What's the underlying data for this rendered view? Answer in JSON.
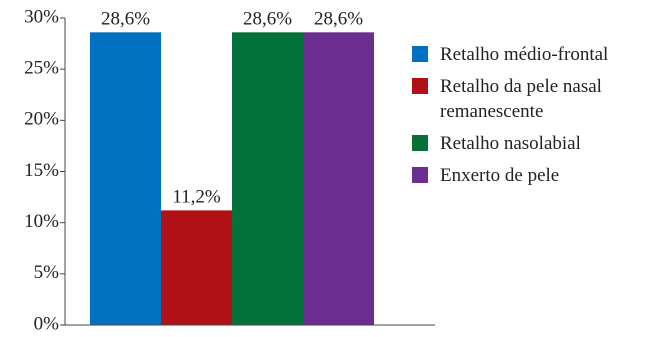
{
  "chart_data": {
    "type": "bar",
    "categories": [
      null
    ],
    "series": [
      {
        "name": "Retalho médio-frontal",
        "color": "#0070c0",
        "values": [
          28.6
        ],
        "value_labels": [
          "28,6%"
        ]
      },
      {
        "name": "Retalho da pele nasal remanescente",
        "color": "#b01116",
        "values": [
          11.2
        ],
        "value_labels": [
          "11,2%"
        ]
      },
      {
        "name": "Retalho nasolabial",
        "color": "#04703a",
        "values": [
          28.6
        ],
        "value_labels": [
          "28,6%"
        ]
      },
      {
        "name": "Enxerto de pele",
        "color": "#6c2d91",
        "values": [
          28.6
        ],
        "value_labels": [
          "28,6%"
        ]
      }
    ],
    "ylim": [
      0,
      30
    ],
    "yticks": [
      {
        "value": 0,
        "label": "0%"
      },
      {
        "value": 5,
        "label": "5%"
      },
      {
        "value": 10,
        "label": "10%"
      },
      {
        "value": 15,
        "label": "15%"
      },
      {
        "value": 20,
        "label": "20%"
      },
      {
        "value": 25,
        "label": "25%"
      },
      {
        "value": 30,
        "label": "30%"
      }
    ],
    "legend": "right"
  }
}
